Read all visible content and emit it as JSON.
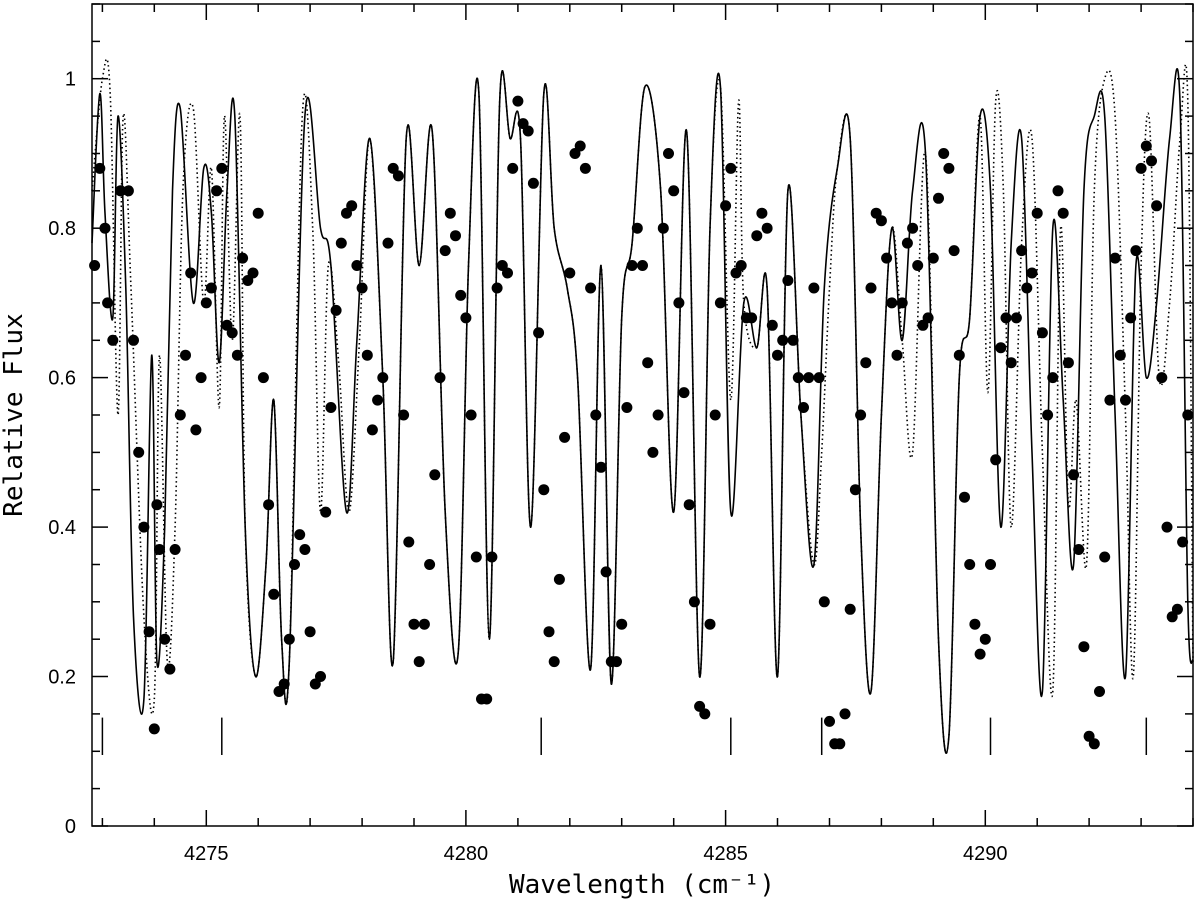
{
  "chart_data": {
    "type": "line",
    "xlabel": "Wavelength (cm⁻¹)",
    "ylabel": "Relative Flux",
    "xlim": [
      4272.8,
      4294.0
    ],
    "ylim": [
      0,
      1.1
    ],
    "x_ticks": [
      4275,
      4280,
      4285,
      4290
    ],
    "y_ticks": [
      0,
      0.2,
      0.4,
      0.6,
      0.8,
      1
    ],
    "y_tick_labels": [
      "0",
      "0.2",
      "0.4",
      "0.6",
      "0.8",
      "1"
    ],
    "grid": false,
    "line_markers": [
      4273.0,
      4275.3,
      4281.45,
      4285.1,
      4286.85,
      4290.1,
      4293.1
    ],
    "series": [
      {
        "style": "solid",
        "x": [
          4272.8,
          4272.95,
          4273.05,
          4273.2,
          4273.3,
          4273.45,
          4273.6,
          4273.8,
          4273.95,
          4274.05,
          4274.2,
          4274.35,
          4274.5,
          4274.75,
          4274.95,
          4275.1,
          4275.25,
          4275.4,
          4275.55,
          4275.75,
          4275.95,
          4276.15,
          4276.3,
          4276.45,
          4276.6,
          4276.9,
          4277.2,
          4277.4,
          4277.7,
          4277.9,
          4278.15,
          4278.4,
          4278.6,
          4278.85,
          4279.1,
          4279.35,
          4279.6,
          4279.85,
          4280.05,
          4280.25,
          4280.45,
          4280.65,
          4280.85,
          4281.05,
          4281.25,
          4281.5,
          4281.7,
          4281.95,
          4282.15,
          4282.4,
          4282.6,
          4282.8,
          4283.0,
          4283.2,
          4283.45,
          4283.75,
          4284.0,
          4284.25,
          4284.5,
          4284.7,
          4284.9,
          4285.1,
          4285.35,
          4285.6,
          4285.8,
          4286.0,
          4286.2,
          4286.45,
          4286.7,
          4286.9,
          4287.15,
          4287.4,
          4287.6,
          4287.8,
          4288.0,
          4288.2,
          4288.4,
          4288.6,
          4288.85,
          4289.1,
          4289.3,
          4289.5,
          4289.7,
          4289.9,
          4290.1,
          4290.3,
          4290.5,
          4290.7,
          4290.9,
          4291.1,
          4291.3,
          4291.5,
          4291.7,
          4291.9,
          4292.1,
          4292.3,
          4292.5,
          4292.7,
          4292.9,
          4293.1,
          4293.3,
          4293.55,
          4293.75,
          4293.9,
          4294.0
        ],
        "y": [
          0.78,
          0.98,
          0.82,
          0.68,
          0.95,
          0.72,
          0.28,
          0.17,
          0.63,
          0.22,
          0.4,
          0.85,
          0.96,
          0.7,
          0.88,
          0.82,
          0.62,
          0.85,
          0.95,
          0.4,
          0.2,
          0.35,
          0.57,
          0.25,
          0.22,
          0.95,
          0.8,
          0.75,
          0.42,
          0.65,
          0.92,
          0.6,
          0.22,
          0.92,
          0.75,
          0.93,
          0.42,
          0.23,
          0.75,
          0.98,
          0.25,
          0.97,
          0.92,
          0.92,
          0.4,
          0.98,
          0.8,
          0.72,
          0.6,
          0.21,
          0.75,
          0.19,
          0.68,
          0.78,
          0.99,
          0.85,
          0.42,
          0.93,
          0.2,
          0.8,
          0.99,
          0.42,
          0.7,
          0.64,
          0.72,
          0.2,
          0.85,
          0.55,
          0.35,
          0.72,
          0.88,
          0.92,
          0.4,
          0.18,
          0.55,
          0.8,
          0.65,
          0.85,
          0.9,
          0.25,
          0.12,
          0.6,
          0.68,
          0.95,
          0.85,
          0.4,
          0.78,
          0.92,
          0.5,
          0.18,
          0.8,
          0.57,
          0.35,
          0.85,
          0.95,
          0.95,
          0.55,
          0.2,
          0.75,
          0.6,
          0.7,
          0.92,
          0.97,
          0.3,
          0.22
        ],
        "points_x": [
          4272.85,
          4272.95,
          4273.05,
          4273.1,
          4273.2,
          4273.35,
          4273.5,
          4273.6,
          4273.7,
          4273.8,
          4273.9,
          4274.0,
          4274.05,
          4274.1,
          4274.2,
          4274.3,
          4274.4,
          4274.5,
          4274.6,
          4274.7,
          4274.8,
          4274.9,
          4275.0,
          4275.1,
          4275.2,
          4275.3,
          4275.4,
          4275.5,
          4275.6,
          4275.7,
          4275.8,
          4275.9,
          4276.0,
          4276.1,
          4276.2,
          4276.3,
          4276.4,
          4276.5,
          4276.6,
          4276.7,
          4276.8,
          4276.9,
          4277.0,
          4277.1,
          4277.2,
          4277.3,
          4277.4,
          4277.5,
          4277.6,
          4277.7,
          4277.8,
          4277.9,
          4278.0,
          4278.1,
          4278.2,
          4278.3,
          4278.4,
          4278.5,
          4278.6,
          4278.7,
          4278.8,
          4278.9,
          4279.0,
          4279.1,
          4279.2,
          4279.3,
          4279.4,
          4279.5,
          4279.6,
          4279.7,
          4279.8,
          4279.9,
          4280.0,
          4280.1,
          4280.2,
          4280.3,
          4280.4,
          4280.5,
          4280.6,
          4280.7,
          4280.8,
          4280.9,
          4281.0,
          4281.1,
          4281.2,
          4281.3,
          4281.4,
          4281.5,
          4281.6,
          4281.7,
          4281.8,
          4281.9,
          4282.0,
          4282.1,
          4282.2,
          4282.3,
          4282.4,
          4282.5,
          4282.6,
          4282.7,
          4282.8,
          4282.9,
          4283.0,
          4283.1,
          4283.2,
          4283.3,
          4283.4,
          4283.5,
          4283.6,
          4283.7,
          4283.8,
          4283.9,
          4284.0,
          4284.1,
          4284.2,
          4284.3,
          4284.4,
          4284.5,
          4284.6,
          4284.7,
          4284.8,
          4284.9,
          4285.0,
          4285.1,
          4285.2,
          4285.3,
          4285.4,
          4285.5,
          4285.6,
          4285.7,
          4285.8,
          4285.9,
          4286.0,
          4286.1,
          4286.2,
          4286.3,
          4286.4,
          4286.5,
          4286.6,
          4286.7,
          4286.8,
          4286.9,
          4287.0,
          4287.1,
          4287.2,
          4287.3,
          4287.4,
          4287.5,
          4287.6,
          4287.7,
          4287.8,
          4287.9,
          4288.0,
          4288.1,
          4288.2,
          4288.3,
          4288.4,
          4288.5,
          4288.6,
          4288.7,
          4288.8,
          4288.9,
          4289.0,
          4289.1,
          4289.2,
          4289.3,
          4289.4,
          4289.5,
          4289.6,
          4289.7,
          4289.8,
          4289.9,
          4290.0,
          4290.1,
          4290.2,
          4290.3,
          4290.4,
          4290.5,
          4290.6,
          4290.7,
          4290.8,
          4290.9,
          4291.0,
          4291.1,
          4291.2,
          4291.3,
          4291.4,
          4291.5,
          4291.6,
          4291.7,
          4291.8,
          4291.9,
          4292.0,
          4292.1,
          4292.2,
          4292.3,
          4292.4,
          4292.5,
          4292.6,
          4292.7,
          4292.8,
          4292.9,
          4293.0,
          4293.1,
          4293.2,
          4293.3,
          4293.4,
          4293.5,
          4293.6,
          4293.7,
          4293.8,
          4293.9
        ],
        "points_y": [
          0.75,
          0.88,
          0.8,
          0.7,
          0.65,
          0.85,
          0.85,
          0.65,
          0.5,
          0.4,
          0.26,
          0.13,
          0.43,
          0.37,
          0.25,
          0.21,
          0.37,
          0.55,
          0.63,
          0.74,
          0.53,
          0.6,
          0.7,
          0.72,
          0.85,
          0.88,
          0.67,
          0.66,
          0.63,
          0.76,
          0.73,
          0.74,
          0.82,
          0.6,
          0.43,
          0.31,
          0.18,
          0.19,
          0.25,
          0.35,
          0.39,
          0.37,
          0.26,
          0.19,
          0.2,
          0.42,
          0.56,
          0.69,
          0.78,
          0.82,
          0.83,
          0.75,
          0.72,
          0.63,
          0.53,
          0.57,
          0.6,
          0.78,
          0.88,
          0.87,
          0.55,
          0.38,
          0.27,
          0.22,
          0.27,
          0.35,
          0.47,
          0.6,
          0.77,
          0.82,
          0.79,
          0.71,
          0.68,
          0.55,
          0.36,
          0.17,
          0.17,
          0.36,
          0.72,
          0.75,
          0.74,
          0.88,
          0.97,
          0.94,
          0.93,
          0.86,
          0.66,
          0.45,
          0.26,
          0.22,
          0.33,
          0.52,
          0.74,
          0.9,
          0.91,
          0.88,
          0.72,
          0.55,
          0.48,
          0.34,
          0.22,
          0.22,
          0.27,
          0.56,
          0.75,
          0.8,
          0.75,
          0.62,
          0.5,
          0.55,
          0.8,
          0.9,
          0.85,
          0.7,
          0.58,
          0.43,
          0.3,
          0.16,
          0.15,
          0.27,
          0.55,
          0.7,
          0.83,
          0.88,
          0.74,
          0.75,
          0.68,
          0.68,
          0.79,
          0.82,
          0.8,
          0.67,
          0.63,
          0.65,
          0.73,
          0.65,
          0.6,
          0.56,
          0.6,
          0.72,
          0.6,
          0.3,
          0.14,
          0.11,
          0.11,
          0.15,
          0.29,
          0.45,
          0.55,
          0.62,
          0.72,
          0.82,
          0.81,
          0.76,
          0.7,
          0.63,
          0.7,
          0.78,
          0.8,
          0.75,
          0.67,
          0.68,
          0.76,
          0.84,
          0.9,
          0.88,
          0.77,
          0.63,
          0.44,
          0.35,
          0.27,
          0.23,
          0.25,
          0.35,
          0.49,
          0.64,
          0.68,
          0.62,
          0.68,
          0.77,
          0.72,
          0.74,
          0.82,
          0.66,
          0.55,
          0.6,
          0.85,
          0.82,
          0.62,
          0.47,
          0.37,
          0.24,
          0.12,
          0.11,
          0.18,
          0.36,
          0.57,
          0.76,
          0.63,
          0.57,
          0.68,
          0.77,
          0.88,
          0.91,
          0.89,
          0.83,
          0.6,
          0.4,
          0.28,
          0.29,
          0.38,
          0.55,
          0.7,
          0.74,
          0.62,
          0.75,
          0.89,
          0.92,
          0.95
        ]
      },
      {
        "style": "dotted",
        "x": [
          4272.8,
          4273.0,
          4273.15,
          4273.3,
          4273.4,
          4273.55,
          4273.8,
          4274.0,
          4274.1,
          4274.25,
          4274.4,
          4274.55,
          4274.75,
          4274.95,
          4275.1,
          4275.25,
          4275.35,
          4275.5,
          4275.65,
          4275.75,
          4275.95,
          4276.15,
          4276.3,
          4276.45,
          4276.6,
          4276.85,
          4277.05,
          4277.2,
          4277.35,
          4277.55,
          4277.75,
          4277.95,
          4278.15,
          4278.4,
          4278.6,
          4278.85,
          4279.1,
          4279.35,
          4279.6,
          4279.85,
          4280.05,
          4280.25,
          4280.45,
          4280.65,
          4280.85,
          4281.05,
          4281.25,
          4281.5,
          4281.7,
          4281.95,
          4282.15,
          4282.4,
          4282.6,
          4282.8,
          4283.0,
          4283.2,
          4283.45,
          4283.75,
          4284.0,
          4284.25,
          4284.5,
          4284.7,
          4284.9,
          4285.1,
          4285.25,
          4285.35,
          4285.6,
          4285.8,
          4286.0,
          4286.2,
          4286.45,
          4286.7,
          4286.85,
          4287.0,
          4287.15,
          4287.4,
          4287.6,
          4287.8,
          4288.0,
          4288.2,
          4288.4,
          4288.6,
          4288.85,
          4289.1,
          4289.3,
          4289.5,
          4289.7,
          4289.9,
          4290.05,
          4290.2,
          4290.35,
          4290.5,
          4290.7,
          4290.9,
          4291.1,
          4291.3,
          4291.45,
          4291.6,
          4291.75,
          4291.95,
          4292.1,
          4292.3,
          4292.5,
          4292.7,
          4292.85,
          4293.0,
          4293.15,
          4293.35,
          4293.55,
          4293.75,
          4293.9,
          4294.0
        ],
        "y": [
          0.85,
          1.0,
          0.98,
          0.55,
          0.95,
          0.72,
          0.28,
          0.17,
          0.63,
          0.22,
          0.4,
          0.85,
          0.96,
          0.7,
          0.88,
          0.56,
          0.95,
          0.65,
          0.95,
          0.4,
          0.2,
          0.35,
          0.57,
          0.25,
          0.22,
          0.95,
          0.8,
          0.42,
          0.75,
          0.62,
          0.42,
          0.65,
          0.92,
          0.6,
          0.22,
          0.92,
          0.75,
          0.93,
          0.42,
          0.23,
          0.75,
          0.98,
          0.25,
          0.97,
          0.92,
          0.92,
          0.4,
          0.98,
          0.8,
          0.72,
          0.6,
          0.21,
          0.75,
          0.19,
          0.68,
          0.78,
          0.99,
          0.85,
          0.42,
          0.93,
          0.2,
          0.8,
          0.99,
          0.57,
          0.97,
          0.7,
          0.64,
          0.72,
          0.2,
          0.85,
          0.55,
          0.35,
          0.5,
          0.72,
          0.88,
          0.92,
          0.4,
          0.18,
          0.55,
          0.8,
          0.65,
          0.5,
          0.9,
          0.25,
          0.12,
          0.6,
          0.68,
          0.95,
          0.58,
          0.97,
          0.85,
          0.4,
          0.78,
          0.92,
          0.5,
          0.18,
          0.8,
          0.43,
          0.57,
          0.35,
          0.85,
          1.0,
          0.95,
          0.55,
          0.2,
          0.75,
          0.95,
          0.6,
          0.7,
          0.92,
          0.97,
          0.22
        ]
      }
    ]
  }
}
